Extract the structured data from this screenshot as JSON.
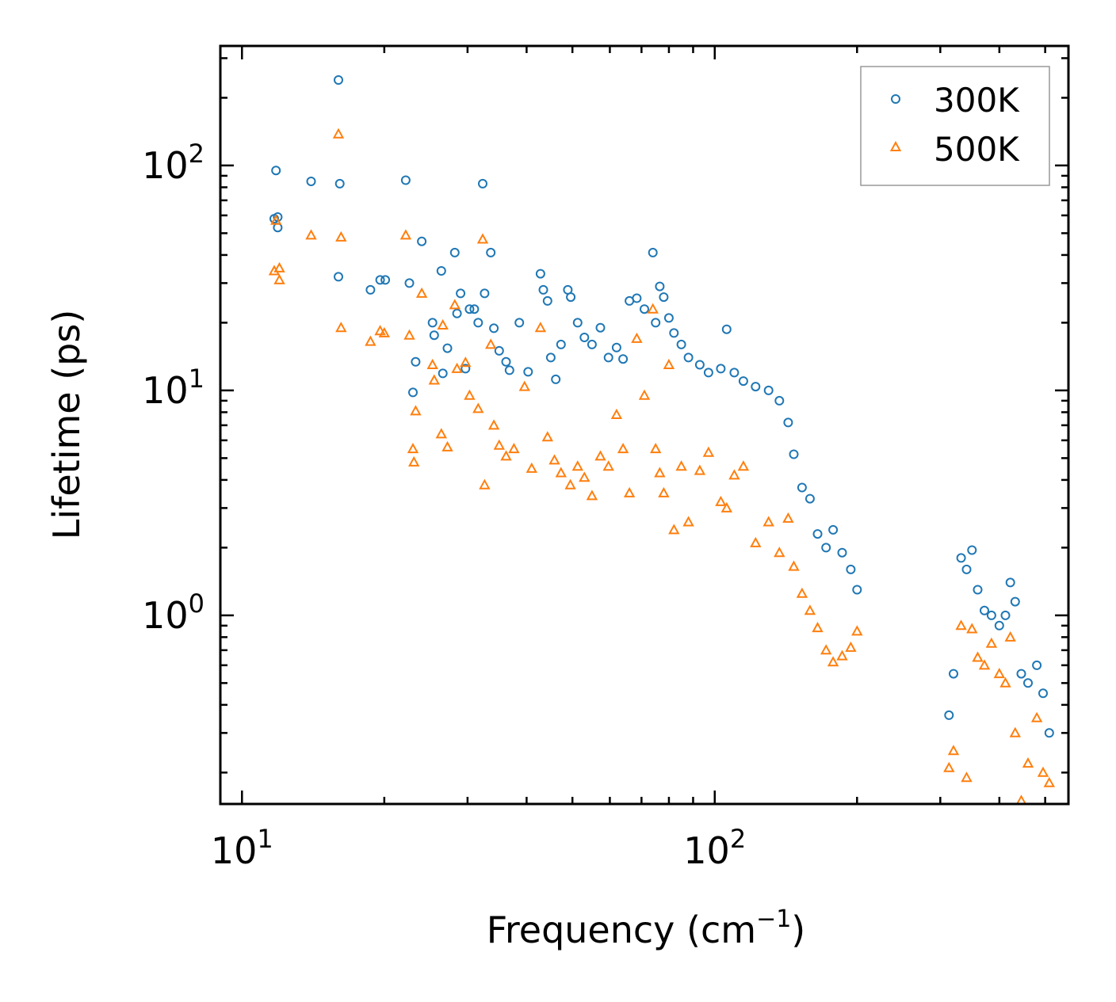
{
  "chart_data": {
    "type": "scatter",
    "title": "",
    "xlabel": "Frequency (cm",
    "xlabel_sup": "−1",
    "xlabel_close": ")",
    "ylabel": "Lifetime (ps)",
    "xscale": "log",
    "yscale": "log",
    "xlim": [
      9,
      560
    ],
    "ylim": [
      0.145,
      340
    ],
    "x_major_ticks": [
      {
        "base": "10",
        "exp": "1",
        "value": 10
      },
      {
        "base": "10",
        "exp": "2",
        "value": 100
      }
    ],
    "y_major_ticks": [
      {
        "base": "10",
        "exp": "0",
        "value": 1
      },
      {
        "base": "10",
        "exp": "1",
        "value": 10
      },
      {
        "base": "10",
        "exp": "2",
        "value": 100
      }
    ],
    "legend_position": "top-right",
    "series": [
      {
        "name": "300K",
        "marker": "circle",
        "color": "#1f77b4",
        "points": [
          [
            11.8,
            95
          ],
          [
            11.7,
            58
          ],
          [
            11.9,
            59
          ],
          [
            11.9,
            53
          ],
          [
            14.0,
            85
          ],
          [
            16.0,
            240
          ],
          [
            16.1,
            83
          ],
          [
            16.0,
            32
          ],
          [
            18.7,
            28
          ],
          [
            19.6,
            31
          ],
          [
            20.1,
            31
          ],
          [
            22.2,
            86
          ],
          [
            22.6,
            30
          ],
          [
            23.0,
            9.8
          ],
          [
            23.3,
            13.4
          ],
          [
            24.0,
            46
          ],
          [
            25.3,
            20
          ],
          [
            25.5,
            17.6
          ],
          [
            26.4,
            34
          ],
          [
            26.6,
            11.9
          ],
          [
            27.2,
            15.4
          ],
          [
            28.2,
            41
          ],
          [
            28.5,
            22
          ],
          [
            29.0,
            27
          ],
          [
            29.7,
            12.5
          ],
          [
            30.3,
            23
          ],
          [
            31.0,
            23
          ],
          [
            31.6,
            20
          ],
          [
            32.3,
            83
          ],
          [
            32.6,
            27
          ],
          [
            33.6,
            41
          ],
          [
            34.1,
            18.9
          ],
          [
            35.0,
            15
          ],
          [
            36.2,
            13.4
          ],
          [
            36.8,
            12.3
          ],
          [
            38.6,
            20
          ],
          [
            40.3,
            12.1
          ],
          [
            42.8,
            33
          ],
          [
            43.4,
            28
          ],
          [
            44.3,
            25
          ],
          [
            45.0,
            14
          ],
          [
            46.1,
            11.2
          ],
          [
            47.3,
            16
          ],
          [
            48.9,
            28
          ],
          [
            49.6,
            26
          ],
          [
            51.3,
            20
          ],
          [
            53.0,
            17.2
          ],
          [
            55.0,
            16
          ],
          [
            57.3,
            19
          ],
          [
            59.6,
            14
          ],
          [
            62.0,
            15.5
          ],
          [
            64.0,
            13.8
          ],
          [
            66.0,
            25
          ],
          [
            68.4,
            25.7
          ],
          [
            71.0,
            23
          ],
          [
            74.0,
            41
          ],
          [
            75.0,
            20
          ],
          [
            76.5,
            29
          ],
          [
            78.0,
            26
          ],
          [
            80.0,
            21
          ],
          [
            82.0,
            18
          ],
          [
            85.0,
            16
          ],
          [
            88.0,
            14
          ],
          [
            93.0,
            13
          ],
          [
            97.0,
            12
          ],
          [
            103.0,
            12.5
          ],
          [
            106.0,
            18.7
          ],
          [
            110.0,
            12
          ],
          [
            115.0,
            11
          ],
          [
            122.0,
            10.4
          ],
          [
            130.0,
            10
          ],
          [
            137.0,
            9
          ],
          [
            143.0,
            7.2
          ],
          [
            147.0,
            5.2
          ],
          [
            153.0,
            3.7
          ],
          [
            159.0,
            3.3
          ],
          [
            165.0,
            2.3
          ],
          [
            172.0,
            2.0
          ],
          [
            178.0,
            2.4
          ],
          [
            186.0,
            1.9
          ],
          [
            194.0,
            1.6
          ],
          [
            200.0,
            1.3
          ],
          [
            313.0,
            0.36
          ],
          [
            320.0,
            0.55
          ],
          [
            332.0,
            1.8
          ],
          [
            341.0,
            1.6
          ],
          [
            350.0,
            1.95
          ],
          [
            360.0,
            1.3
          ],
          [
            372.0,
            1.05
          ],
          [
            385.0,
            1.0
          ],
          [
            400.0,
            0.9
          ],
          [
            412.0,
            1.0
          ],
          [
            422.0,
            1.4
          ],
          [
            432.0,
            1.15
          ],
          [
            445.0,
            0.55
          ],
          [
            460.0,
            0.5
          ],
          [
            480.0,
            0.6
          ],
          [
            495.0,
            0.45
          ],
          [
            510.0,
            0.3
          ]
        ]
      },
      {
        "name": "500K",
        "marker": "triangle",
        "color": "#ff7f0e",
        "points": [
          [
            11.7,
            34
          ],
          [
            11.8,
            57
          ],
          [
            12.0,
            35
          ],
          [
            12.0,
            31
          ],
          [
            14.0,
            49
          ],
          [
            16.0,
            138
          ],
          [
            16.2,
            48
          ],
          [
            16.2,
            19
          ],
          [
            18.7,
            16.5
          ],
          [
            19.6,
            18.4
          ],
          [
            20.0,
            18
          ],
          [
            22.2,
            49
          ],
          [
            22.6,
            17.6
          ],
          [
            23.0,
            5.5
          ],
          [
            23.1,
            4.8
          ],
          [
            23.3,
            8.1
          ],
          [
            24.0,
            27
          ],
          [
            25.3,
            13
          ],
          [
            25.5,
            11.1
          ],
          [
            26.4,
            6.4
          ],
          [
            26.6,
            19.5
          ],
          [
            27.2,
            5.6
          ],
          [
            28.2,
            24
          ],
          [
            28.5,
            12.5
          ],
          [
            29.7,
            13.3
          ],
          [
            30.3,
            9.5
          ],
          [
            31.6,
            8.3
          ],
          [
            32.3,
            47
          ],
          [
            32.6,
            3.8
          ],
          [
            33.6,
            16
          ],
          [
            34.1,
            7
          ],
          [
            35.0,
            5.7
          ],
          [
            36.2,
            5.1
          ],
          [
            37.6,
            5.5
          ],
          [
            39.6,
            10.4
          ],
          [
            41.0,
            4.5
          ],
          [
            42.8,
            19
          ],
          [
            44.3,
            6.2
          ],
          [
            45.8,
            4.9
          ],
          [
            47.3,
            4.3
          ],
          [
            49.5,
            3.8
          ],
          [
            51.3,
            4.6
          ],
          [
            53.0,
            4.1
          ],
          [
            55.0,
            3.4
          ],
          [
            57.3,
            5.1
          ],
          [
            59.6,
            4.6
          ],
          [
            62.0,
            7.8
          ],
          [
            64.0,
            5.5
          ],
          [
            66.0,
            3.5
          ],
          [
            68.4,
            17
          ],
          [
            71.0,
            9.5
          ],
          [
            74.0,
            23
          ],
          [
            75.0,
            5.5
          ],
          [
            76.5,
            4.3
          ],
          [
            78.0,
            3.5
          ],
          [
            80.0,
            13
          ],
          [
            82.0,
            2.4
          ],
          [
            85.0,
            4.6
          ],
          [
            88.0,
            2.6
          ],
          [
            93.0,
            4.4
          ],
          [
            97.0,
            5.3
          ],
          [
            103.0,
            3.2
          ],
          [
            106.0,
            3.0
          ],
          [
            110.0,
            4.2
          ],
          [
            115.0,
            4.6
          ],
          [
            122.0,
            2.1
          ],
          [
            130.0,
            2.6
          ],
          [
            137.0,
            1.9
          ],
          [
            143.0,
            2.7
          ],
          [
            147.0,
            1.65
          ],
          [
            153.0,
            1.25
          ],
          [
            159.0,
            1.05
          ],
          [
            165.0,
            0.88
          ],
          [
            172.0,
            0.7
          ],
          [
            178.0,
            0.62
          ],
          [
            186.0,
            0.66
          ],
          [
            194.0,
            0.72
          ],
          [
            200.0,
            0.85
          ],
          [
            313.0,
            0.21
          ],
          [
            320.0,
            0.25
          ],
          [
            332.0,
            0.9
          ],
          [
            341.0,
            0.19
          ],
          [
            350.0,
            0.87
          ],
          [
            360.0,
            0.65
          ],
          [
            372.0,
            0.6
          ],
          [
            385.0,
            0.75
          ],
          [
            400.0,
            0.55
          ],
          [
            412.0,
            0.5
          ],
          [
            422.0,
            0.8
          ],
          [
            432.0,
            0.3
          ],
          [
            445.0,
            0.15
          ],
          [
            460.0,
            0.22
          ],
          [
            480.0,
            0.35
          ],
          [
            495.0,
            0.2
          ],
          [
            510.0,
            0.18
          ]
        ]
      }
    ]
  }
}
